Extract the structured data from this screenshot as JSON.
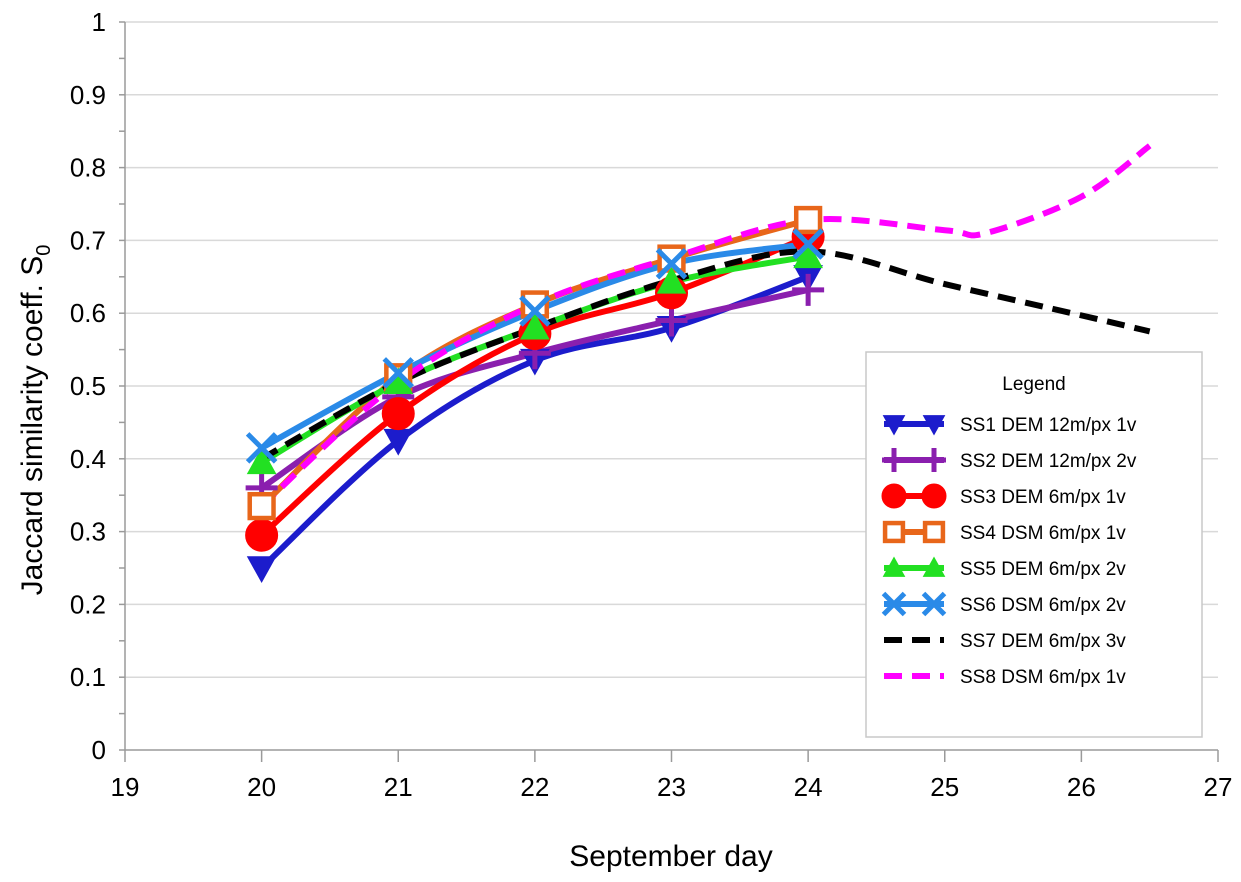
{
  "chart_data": {
    "type": "line",
    "xlabel": "September day",
    "ylabel": "Jaccard similarity coeff. S",
    "ylabel_sub": "0",
    "xlim": [
      19,
      27
    ],
    "ylim": [
      0,
      1
    ],
    "xticks": [
      "19",
      "20",
      "21",
      "22",
      "23",
      "24",
      "25",
      "26",
      "27"
    ],
    "yticks": [
      "0",
      "0.1",
      "0.2",
      "0.3",
      "0.4",
      "0.5",
      "0.6",
      "0.7",
      "0.8",
      "0.9",
      "1"
    ],
    "grid": "horizontal",
    "legend": {
      "title": "Legend",
      "position": "bottom-right"
    },
    "series": [
      {
        "name": "SS1 DEM 12m/px 1v",
        "color": "#1c1ccc",
        "marker": "triangle-down",
        "dash": "solid",
        "x": [
          20,
          21,
          22,
          23,
          24
        ],
        "y": [
          0.25,
          0.425,
          0.535,
          0.58,
          0.65
        ]
      },
      {
        "name": "SS2 DEM 12m/px 2v",
        "color": "#8a1fae",
        "marker": "plus",
        "dash": "solid",
        "x": [
          20,
          21,
          22,
          23,
          24
        ],
        "y": [
          0.36,
          0.485,
          0.545,
          0.59,
          0.632
        ]
      },
      {
        "name": "SS3 DEM 6m/px 1v",
        "color": "#ff0000",
        "marker": "circle",
        "dash": "solid",
        "x": [
          20,
          21,
          22,
          23,
          24
        ],
        "y": [
          0.295,
          0.462,
          0.572,
          0.628,
          0.705
        ]
      },
      {
        "name": "SS4 DSM 6m/px 1v",
        "color": "#e8661a",
        "marker": "square",
        "dash": "solid",
        "x": [
          20,
          21,
          22,
          23,
          24
        ],
        "y": [
          0.335,
          0.512,
          0.612,
          0.675,
          0.728
        ]
      },
      {
        "name": "SS5 DEM 6m/px 2v",
        "color": "#22e022",
        "marker": "triangle-up",
        "dash": "solid",
        "x": [
          20,
          21,
          22,
          23,
          24
        ],
        "y": [
          0.395,
          0.505,
          0.58,
          0.643,
          0.678
        ]
      },
      {
        "name": "SS6 DSM 6m/px 2v",
        "color": "#2a8ae8",
        "marker": "x",
        "dash": "solid",
        "x": [
          20,
          21,
          22,
          23,
          24
        ],
        "y": [
          0.415,
          0.518,
          0.603,
          0.668,
          0.695
        ]
      },
      {
        "name": "SS7 DEM 6m/px 3v",
        "color": "#000000",
        "marker": "none",
        "dash": "dashed",
        "x": [
          20,
          21,
          22,
          23,
          24,
          25,
          26,
          26.5
        ],
        "y": [
          0.4,
          0.505,
          0.58,
          0.645,
          0.685,
          0.64,
          0.597,
          0.575
        ]
      },
      {
        "name": "SS8 DSM 6m/px 1v",
        "color": "#ff00ff",
        "marker": "none",
        "dash": "dashed",
        "x": [
          20,
          21,
          22,
          23,
          24,
          25,
          25.3,
          26,
          26.5
        ],
        "y": [
          0.335,
          0.505,
          0.612,
          0.676,
          0.728,
          0.714,
          0.71,
          0.76,
          0.83
        ]
      }
    ]
  }
}
